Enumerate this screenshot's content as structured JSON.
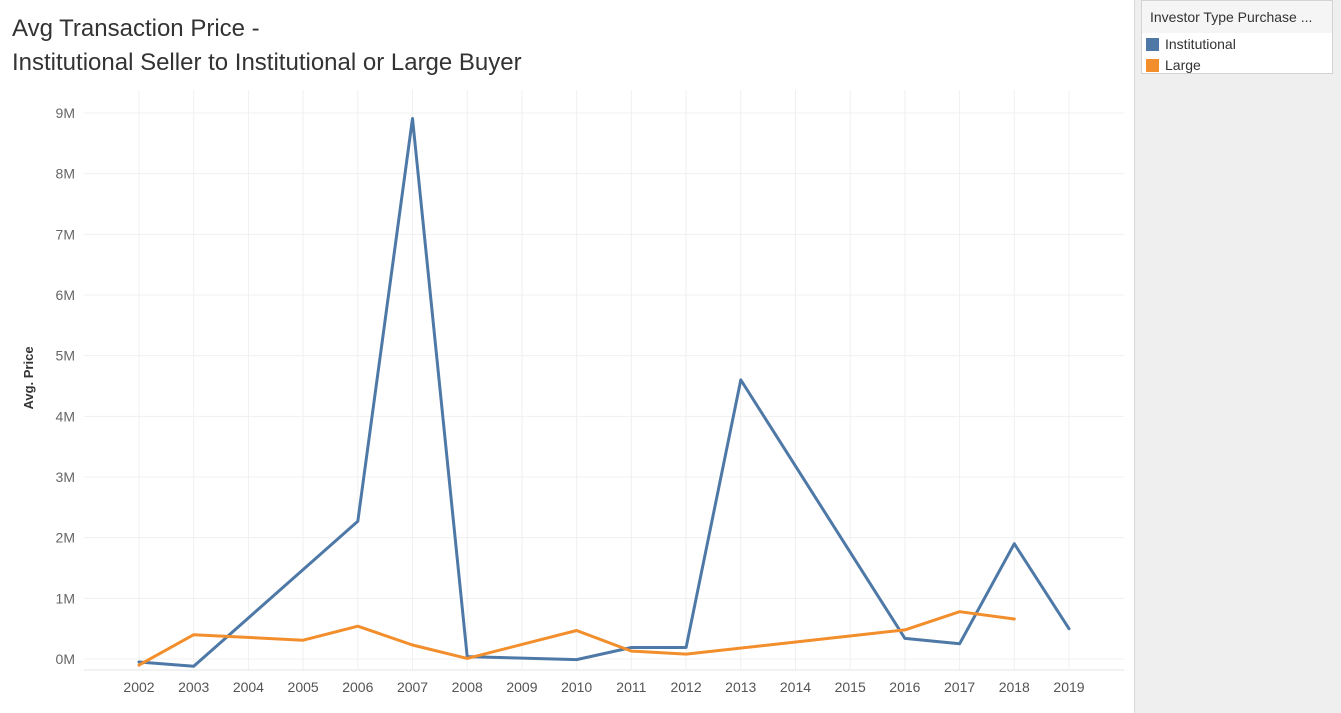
{
  "chart_data": {
    "type": "line",
    "title_line1": "Avg Transaction Price -",
    "title_line2": "Institutional Seller to Institutional or Large Buyer",
    "ylabel": "Avg. Price",
    "xlabel": "",
    "ylim": [
      -150000,
      9300000
    ],
    "yticks": [
      {
        "value": 0,
        "label": "0M"
      },
      {
        "value": 1000000,
        "label": "1M"
      },
      {
        "value": 2000000,
        "label": "2M"
      },
      {
        "value": 3000000,
        "label": "3M"
      },
      {
        "value": 4000000,
        "label": "4M"
      },
      {
        "value": 5000000,
        "label": "5M"
      },
      {
        "value": 6000000,
        "label": "6M"
      },
      {
        "value": 7000000,
        "label": "7M"
      },
      {
        "value": 8000000,
        "label": "8M"
      },
      {
        "value": 9000000,
        "label": "9M"
      }
    ],
    "x": [
      "2002",
      "2003",
      "2004",
      "2005",
      "2006",
      "2007",
      "2008",
      "2009",
      "2010",
      "2011",
      "2012",
      "2013",
      "2014",
      "2015",
      "2016",
      "2017",
      "2018",
      "2019"
    ],
    "grid": true,
    "series": [
      {
        "name": "Institutional",
        "color": "#4e79a7",
        "points": [
          {
            "x": "2002",
            "y": -50000
          },
          {
            "x": "2003",
            "y": -120000
          },
          {
            "x": "2006",
            "y": 2270000
          },
          {
            "x": "2007",
            "y": 8910000
          },
          {
            "x": "2008",
            "y": 40000
          },
          {
            "x": "2010",
            "y": -10000
          },
          {
            "x": "2011",
            "y": 190000
          },
          {
            "x": "2012",
            "y": 190000
          },
          {
            "x": "2013",
            "y": 4600000
          },
          {
            "x": "2016",
            "y": 340000
          },
          {
            "x": "2017",
            "y": 250000
          },
          {
            "x": "2018",
            "y": 1900000
          },
          {
            "x": "2019",
            "y": 500000
          }
        ]
      },
      {
        "name": "Large",
        "color": "#f28e2b",
        "points": [
          {
            "x": "2002",
            "y": -100000
          },
          {
            "x": "2003",
            "y": 400000
          },
          {
            "x": "2005",
            "y": 310000
          },
          {
            "x": "2006",
            "y": 540000
          },
          {
            "x": "2007",
            "y": 230000
          },
          {
            "x": "2008",
            "y": 10000
          },
          {
            "x": "2010",
            "y": 470000
          },
          {
            "x": "2011",
            "y": 130000
          },
          {
            "x": "2012",
            "y": 80000
          },
          {
            "x": "2016",
            "y": 480000
          },
          {
            "x": "2017",
            "y": 780000
          },
          {
            "x": "2018",
            "y": 660000
          }
        ]
      }
    ],
    "legend": {
      "title": "Investor Type Purchase ...",
      "placement": "top-right",
      "items": [
        {
          "label": "Institutional",
          "color": "#4e79a7"
        },
        {
          "label": "Large",
          "color": "#f28e2b"
        }
      ]
    }
  }
}
